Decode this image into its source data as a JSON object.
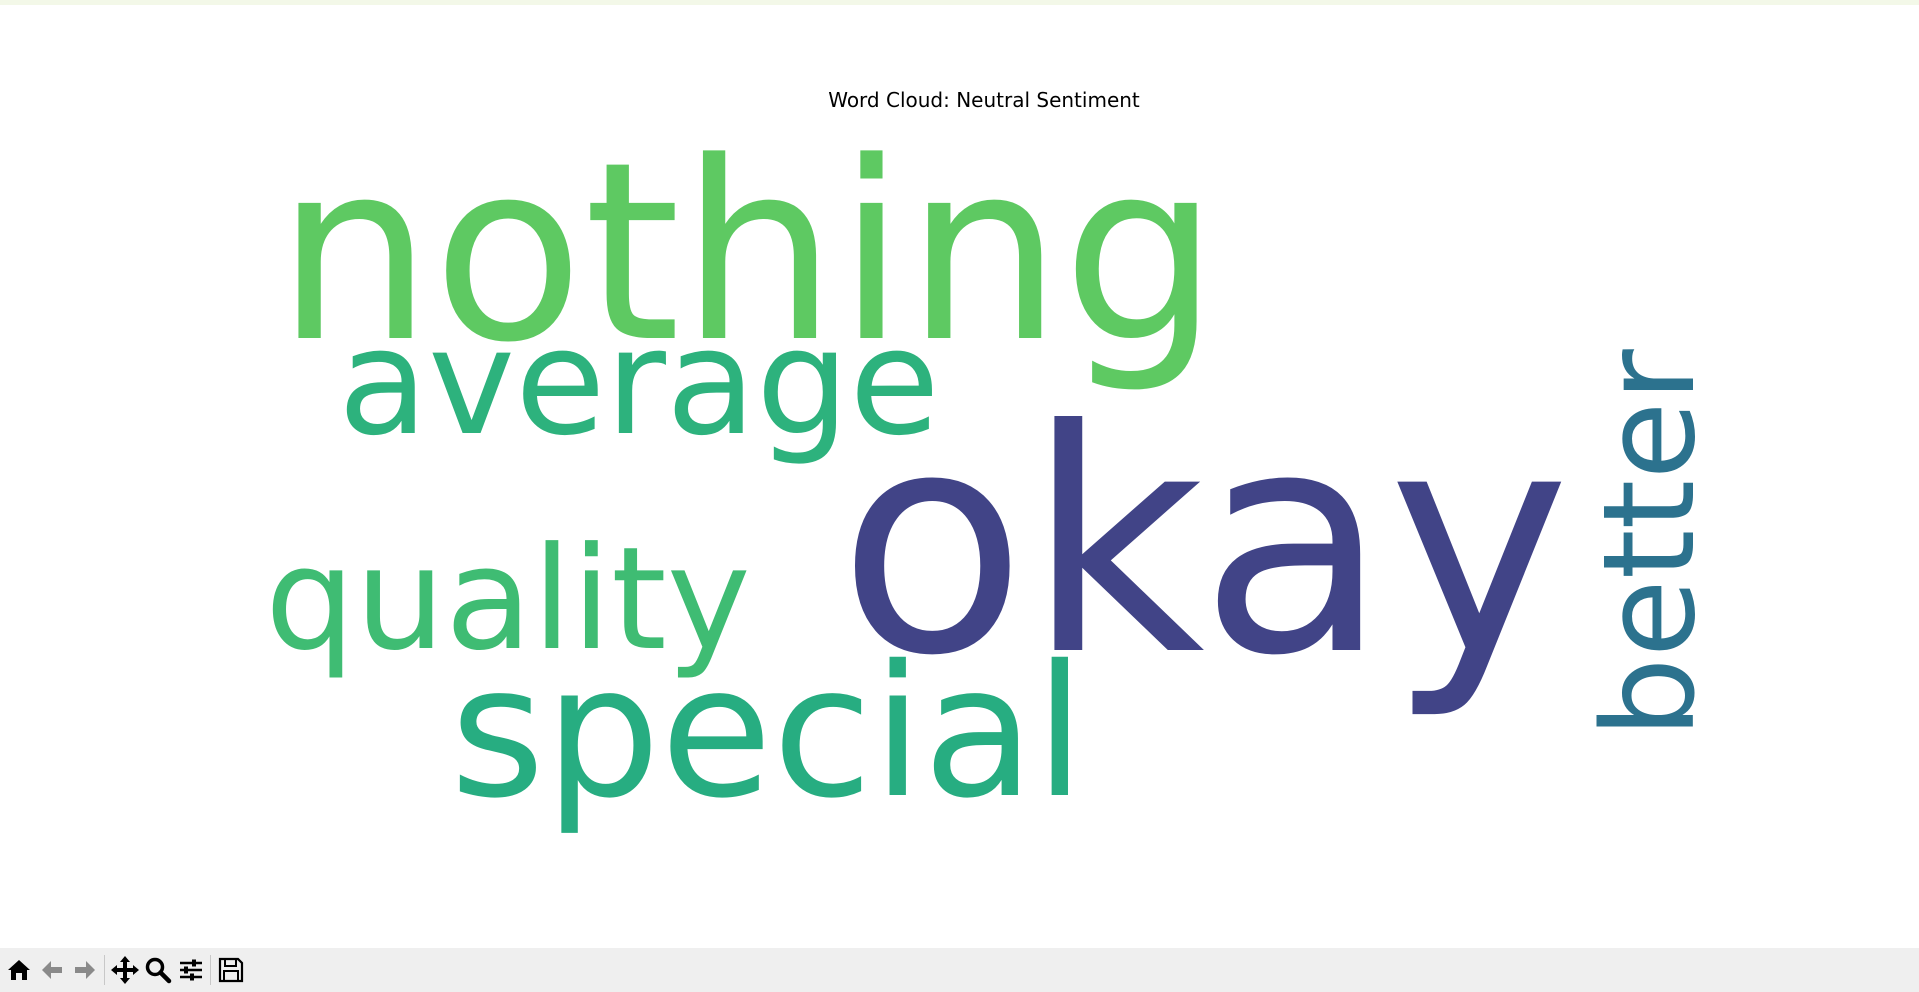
{
  "window": {
    "title": "Word Cloud: Neutral Sentiment"
  },
  "chart_data": {
    "type": "wordcloud",
    "title": "Word Cloud: Neutral Sentiment",
    "words": [
      {
        "text": "nothing",
        "color": "#5ec962"
      },
      {
        "text": "okay",
        "color": "#414487"
      },
      {
        "text": "average",
        "color": "#2db27d"
      },
      {
        "text": "special",
        "color": "#27ad81"
      },
      {
        "text": "quality",
        "color": "#3fbc73"
      },
      {
        "text": "better",
        "color": "#2c728e"
      }
    ]
  },
  "toolbar": {
    "buttons": [
      {
        "name": "home-button",
        "icon": "home-icon"
      },
      {
        "name": "back-button",
        "icon": "arrow-left-icon"
      },
      {
        "name": "forward-button",
        "icon": "arrow-right-icon"
      },
      {
        "name": "pan-button",
        "icon": "move-icon"
      },
      {
        "name": "zoom-button",
        "icon": "magnifier-icon"
      },
      {
        "name": "configure-subplots-button",
        "icon": "sliders-icon"
      },
      {
        "name": "save-button",
        "icon": "floppy-disk-icon"
      }
    ]
  }
}
